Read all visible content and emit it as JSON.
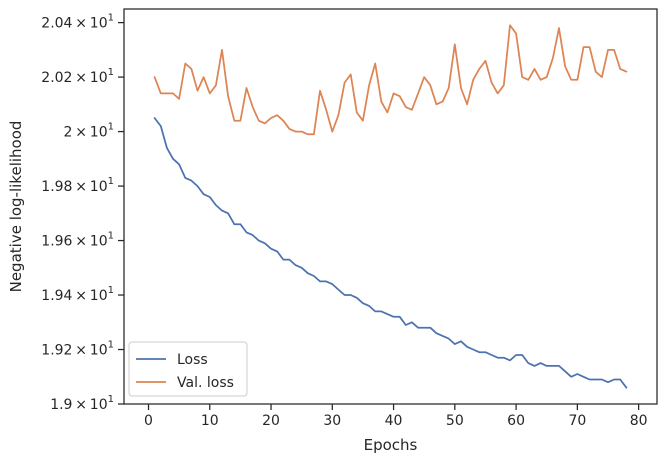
{
  "chart_data": {
    "type": "line",
    "xlabel": "Epochs",
    "ylabel": "Negative log-likelihood",
    "xlim": [
      -4.0,
      83.0
    ],
    "ylim": [
      19.0,
      20.45
    ],
    "x_ticks": [
      0,
      10,
      20,
      30,
      40,
      50,
      60,
      70,
      80
    ],
    "y_ticks": [
      {
        "value": 19.0,
        "mantissa": "1.9",
        "base": "10",
        "exp": "1"
      },
      {
        "value": 19.2,
        "mantissa": "1.92",
        "base": "10",
        "exp": "1"
      },
      {
        "value": 19.4,
        "mantissa": "1.94",
        "base": "10",
        "exp": "1"
      },
      {
        "value": 19.6,
        "mantissa": "1.96",
        "base": "10",
        "exp": "1"
      },
      {
        "value": 19.8,
        "mantissa": "1.98",
        "base": "10",
        "exp": "1"
      },
      {
        "value": 20.0,
        "mantissa": "2",
        "base": "10",
        "exp": "1"
      },
      {
        "value": 20.2,
        "mantissa": "2.02",
        "base": "10",
        "exp": "1"
      },
      {
        "value": 20.4,
        "mantissa": "2.04",
        "base": "10",
        "exp": "1"
      }
    ],
    "grid": false,
    "legend_position": "lower-left",
    "series": [
      {
        "name": "Loss",
        "color": "#4c72b0",
        "x": [
          1,
          2,
          3,
          4,
          5,
          6,
          7,
          8,
          9,
          10,
          11,
          12,
          13,
          14,
          15,
          16,
          17,
          18,
          19,
          20,
          21,
          22,
          23,
          24,
          25,
          26,
          27,
          28,
          29,
          30,
          31,
          32,
          33,
          34,
          35,
          36,
          37,
          38,
          39,
          40,
          41,
          42,
          43,
          44,
          45,
          46,
          47,
          48,
          49,
          50,
          51,
          52,
          53,
          54,
          55,
          56,
          57,
          58,
          59,
          60,
          61,
          62,
          63,
          64,
          65,
          66,
          67,
          68,
          69,
          70,
          71,
          72,
          73,
          74,
          75,
          76,
          77,
          78
        ],
        "values": [
          20.05,
          20.02,
          19.94,
          19.9,
          19.88,
          19.83,
          19.82,
          19.8,
          19.77,
          19.76,
          19.73,
          19.71,
          19.7,
          19.66,
          19.66,
          19.63,
          19.62,
          19.6,
          19.59,
          19.57,
          19.56,
          19.53,
          19.53,
          19.51,
          19.5,
          19.48,
          19.47,
          19.45,
          19.45,
          19.44,
          19.42,
          19.4,
          19.4,
          19.39,
          19.37,
          19.36,
          19.34,
          19.34,
          19.33,
          19.32,
          19.32,
          19.29,
          19.3,
          19.28,
          19.28,
          19.28,
          19.26,
          19.25,
          19.24,
          19.22,
          19.23,
          19.21,
          19.2,
          19.19,
          19.19,
          19.18,
          19.17,
          19.17,
          19.16,
          19.18,
          19.18,
          19.15,
          19.14,
          19.15,
          19.14,
          19.14,
          19.14,
          19.12,
          19.1,
          19.11,
          19.1,
          19.09,
          19.09,
          19.09,
          19.08,
          19.09,
          19.09,
          19.06
        ]
      },
      {
        "name": "Val. loss",
        "color": "#dd8452",
        "x": [
          1,
          2,
          3,
          4,
          5,
          6,
          7,
          8,
          9,
          10,
          11,
          12,
          13,
          14,
          15,
          16,
          17,
          18,
          19,
          20,
          21,
          22,
          23,
          24,
          25,
          26,
          27,
          28,
          29,
          30,
          31,
          32,
          33,
          34,
          35,
          36,
          37,
          38,
          39,
          40,
          41,
          42,
          43,
          44,
          45,
          46,
          47,
          48,
          49,
          50,
          51,
          52,
          53,
          54,
          55,
          56,
          57,
          58,
          59,
          60,
          61,
          62,
          63,
          64,
          65,
          66,
          67,
          68,
          69,
          70,
          71,
          72,
          73,
          74,
          75,
          76,
          77,
          78
        ],
        "values": [
          20.2,
          20.14,
          20.14,
          20.14,
          20.12,
          20.25,
          20.23,
          20.15,
          20.2,
          20.14,
          20.17,
          20.3,
          20.13,
          20.04,
          20.04,
          20.16,
          20.09,
          20.04,
          20.03,
          20.05,
          20.06,
          20.04,
          20.01,
          20.0,
          20.0,
          19.99,
          19.99,
          20.15,
          20.08,
          20.0,
          20.06,
          20.18,
          20.21,
          20.07,
          20.04,
          20.17,
          20.25,
          20.11,
          20.07,
          20.14,
          20.13,
          20.09,
          20.08,
          20.14,
          20.2,
          20.17,
          20.1,
          20.11,
          20.16,
          20.32,
          20.16,
          20.1,
          20.19,
          20.23,
          20.26,
          20.18,
          20.14,
          20.17,
          20.39,
          20.36,
          20.2,
          20.19,
          20.23,
          20.19,
          20.2,
          20.27,
          20.38,
          20.24,
          20.19,
          20.19,
          20.31,
          20.31,
          20.22,
          20.2,
          20.3,
          20.3,
          20.23,
          20.22
        ]
      }
    ]
  }
}
